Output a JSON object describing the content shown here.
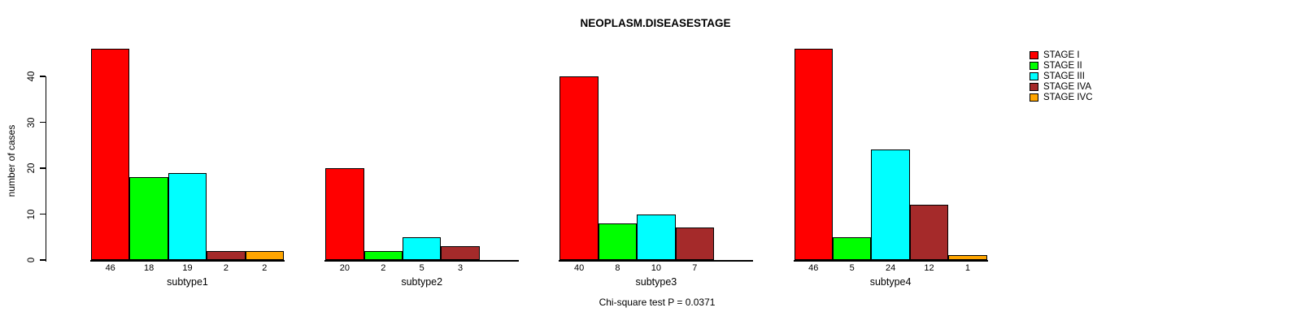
{
  "title": "NEOPLASM.DISEASESTAGE",
  "footer": "Chi-square test P = 0.0371",
  "chart_data": {
    "type": "bar",
    "title": "NEOPLASM.DISEASESTAGE",
    "ylabel": "number of cases",
    "xlabel": "",
    "categories": [
      "subtype1",
      "subtype2",
      "subtype3",
      "subtype4"
    ],
    "series": [
      {
        "name": "STAGE I",
        "color": "#ff0000",
        "values": [
          46,
          20,
          40,
          46
        ]
      },
      {
        "name": "STAGE II",
        "color": "#00ff00",
        "values": [
          18,
          2,
          8,
          5
        ]
      },
      {
        "name": "STAGE III",
        "color": "#00ffff",
        "values": [
          19,
          5,
          10,
          24
        ]
      },
      {
        "name": "STAGE IVA",
        "color": "#a52a2a",
        "values": [
          2,
          3,
          7,
          12
        ]
      },
      {
        "name": "STAGE IVC",
        "color": "#ffa500",
        "values": [
          2,
          0,
          0,
          1
        ]
      }
    ],
    "bar_value_labels": [
      [
        "46",
        "18",
        "19",
        "2",
        "2"
      ],
      [
        "20",
        "2",
        "5",
        "3",
        ""
      ],
      [
        "40",
        "8",
        "10",
        "7",
        ""
      ],
      [
        "46",
        "5",
        "24",
        "12",
        "1"
      ]
    ],
    "yticks": [
      0,
      10,
      20,
      30,
      40
    ],
    "ylim": [
      0,
      40
    ],
    "grid": false,
    "legend_position": "right-outside",
    "legend_entries": [
      "STAGE I",
      "STAGE II",
      "STAGE III",
      "STAGE IVA",
      "STAGE IVC"
    ],
    "annotation": "Chi-square test P = 0.0371",
    "axis_color": "#000000",
    "bar_border_color": "#000000"
  }
}
